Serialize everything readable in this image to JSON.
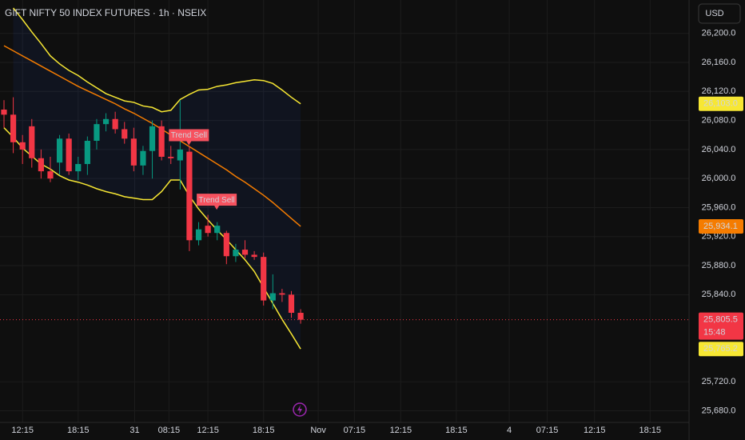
{
  "chart_data": {
    "type": "candlestick",
    "title": "GIFT NIFTY 50 INDEX FUTURES · 1h · NSEIX",
    "currency": "USD",
    "x": [
      0,
      1,
      2,
      3,
      4,
      5,
      6,
      7,
      8,
      9,
      10,
      11,
      12,
      13,
      14,
      15,
      16,
      17,
      18,
      19,
      20,
      21,
      22,
      23,
      24,
      25,
      26,
      27,
      28,
      29,
      30,
      31,
      32
    ],
    "open": [
      26095,
      26088,
      26050,
      26072,
      26028,
      26010,
      26022,
      26055,
      26010,
      26020,
      26052,
      26075,
      26082,
      26068,
      26055,
      26018,
      26038,
      26072,
      26030,
      26025,
      26037,
      25915,
      25935,
      25925,
      25925,
      25893,
      25902,
      25895,
      25892,
      25832,
      25842,
      25840,
      25815
    ],
    "high": [
      26108,
      26112,
      26060,
      26082,
      26040,
      26030,
      26060,
      26062,
      26030,
      26058,
      26082,
      26090,
      26092,
      26078,
      26070,
      26045,
      26080,
      26080,
      26045,
      26108,
      26045,
      25940,
      25950,
      25940,
      25928,
      25910,
      25915,
      25900,
      25898,
      25868,
      25848,
      25845,
      25820
    ],
    "low": [
      26070,
      26035,
      26020,
      26015,
      26000,
      25995,
      26005,
      26005,
      25998,
      26005,
      26040,
      26065,
      26062,
      26048,
      26010,
      26005,
      26000,
      26025,
      26020,
      25985,
      25900,
      25908,
      25920,
      25915,
      25882,
      25885,
      25890,
      25888,
      25825,
      25820,
      25830,
      25808,
      25800
    ],
    "close": [
      26088,
      26050,
      26040,
      26028,
      26010,
      26000,
      26055,
      26010,
      26020,
      26052,
      26075,
      26082,
      26068,
      26055,
      26018,
      26038,
      26072,
      26030,
      26028,
      26040,
      25915,
      25930,
      25925,
      25935,
      25893,
      25902,
      25895,
      25892,
      25832,
      25842,
      25840,
      25815,
      25805.5
    ],
    "up_color": "#089981",
    "down_color": "#f23645",
    "series": [
      {
        "color": "#f7e733",
        "values": [
          null,
          26235,
          26219,
          26202,
          26186,
          26169,
          26158,
          26149,
          26142,
          26133,
          26125,
          26117,
          26112,
          26107,
          26105,
          26100,
          26098,
          26092,
          26094,
          26109,
          26116,
          26122,
          26123,
          26127,
          26129,
          26132,
          26134,
          26136,
          26135,
          26131,
          26122,
          26112,
          26103
        ]
      },
      {
        "color": "#f57c00",
        "values": [
          26183,
          26176,
          26169,
          26162,
          26155,
          26148,
          26141,
          26134,
          26127,
          26121,
          26115,
          26109,
          26103,
          26096,
          26090,
          26083,
          26076,
          26068,
          26060,
          26052,
          26044,
          26036,
          26028,
          26020,
          26012,
          26003,
          25995,
          25986,
          25977,
          25967,
          25956,
          25945,
          25934.1
        ]
      },
      {
        "color": "#f7e733",
        "values": [
          26070,
          26057,
          26042,
          26031,
          26020,
          26013,
          26004,
          25998,
          25995,
          25991,
          25986,
          25982,
          25979,
          25975,
          25973,
          25971,
          25971,
          25982,
          25998,
          25998,
          25976,
          25958,
          25943,
          25929,
          25916,
          25902,
          25888,
          25872,
          25850,
          25828,
          25806,
          25786,
          25765.2
        ]
      }
    ],
    "signals": [
      {
        "text": "Trend Sell",
        "x": 19,
        "value": 26046
      },
      {
        "text": "Trend Sell",
        "x": 22,
        "value": 25957
      }
    ],
    "price_labels": [
      {
        "value": 26103,
        "label": "26,103.0",
        "color": "#f7e733"
      },
      {
        "value": 25934.1,
        "label": "25,934.1",
        "color": "#f57c00"
      },
      {
        "value": 25805.5,
        "label": "25,805.5",
        "color": "#f23645",
        "countdown": "15:48"
      },
      {
        "value": 25765.2,
        "label": "25,765.2",
        "color": "#f7e733"
      }
    ],
    "xlim": [
      -0.43,
      73.9
    ],
    "ylim": [
      25664,
      26246
    ],
    "xticks": [
      {
        "value": 2,
        "label": "12:15"
      },
      {
        "value": 8,
        "label": "18:15"
      },
      {
        "value": 14.1,
        "label": "31"
      },
      {
        "value": 17.8,
        "label": "08:15"
      },
      {
        "value": 22,
        "label": "12:15"
      },
      {
        "value": 28,
        "label": "18:15"
      },
      {
        "value": 33.9,
        "label": "Nov"
      },
      {
        "value": 37.8,
        "label": "07:15"
      },
      {
        "value": 42.8,
        "label": "12:15"
      },
      {
        "value": 48.8,
        "label": "18:15"
      },
      {
        "value": 54.5,
        "label": "4"
      },
      {
        "value": 58.6,
        "label": "07:15"
      },
      {
        "value": 63.7,
        "label": "12:15"
      },
      {
        "value": 69.7,
        "label": "18:15"
      }
    ],
    "yticks": [
      {
        "value": 26200,
        "label": "26,200.0"
      },
      {
        "value": 26160,
        "label": "26,160.0"
      },
      {
        "value": 26120,
        "label": "26,120.0"
      },
      {
        "value": 26080,
        "label": "26,080.0"
      },
      {
        "value": 26040,
        "label": "26,040.0"
      },
      {
        "value": 26000,
        "label": "26,000.0"
      },
      {
        "value": 25960,
        "label": "25,960.0"
      },
      {
        "value": 25920,
        "label": "25,920.0"
      },
      {
        "value": 25880,
        "label": "25,880.0"
      },
      {
        "value": 25840,
        "label": "25,840.0"
      },
      {
        "value": 25720,
        "label": "25,720.0"
      },
      {
        "value": 25680,
        "label": "25,680.0"
      }
    ],
    "grid": true
  }
}
